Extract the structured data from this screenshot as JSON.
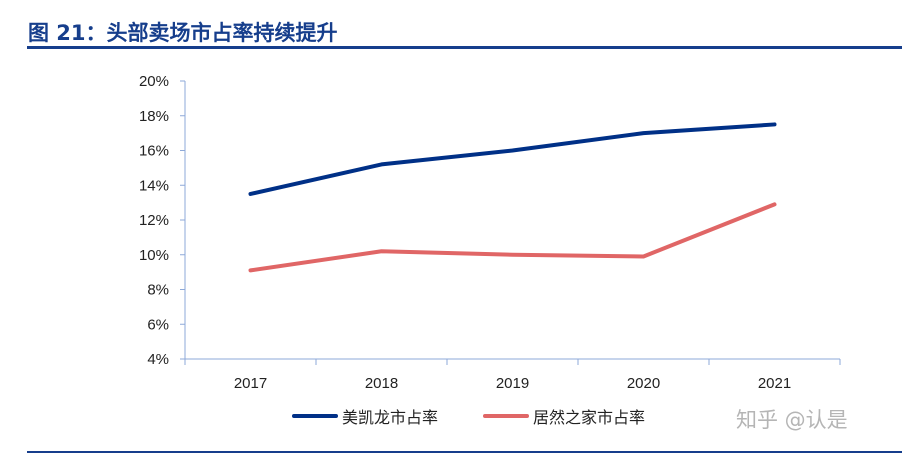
{
  "title": "图 21：头部卖场市占率持续提升",
  "watermark": "知乎 @认是",
  "chart_data": {
    "type": "line",
    "title": "图 21：头部卖场市占率持续提升",
    "categories": [
      "2017",
      "2018",
      "2019",
      "2020",
      "2021"
    ],
    "ylim": [
      4,
      20
    ],
    "yticks": [
      4,
      6,
      8,
      10,
      12,
      14,
      16,
      18,
      20
    ],
    "ytick_labels": [
      "4%",
      "6%",
      "8%",
      "10%",
      "12%",
      "14%",
      "16%",
      "18%",
      "20%"
    ],
    "grid": false,
    "legend_position": "bottom",
    "series": [
      {
        "name": "美凯龙市占率",
        "color": "#003087",
        "values": [
          13.5,
          15.2,
          16.0,
          17.0,
          17.5
        ]
      },
      {
        "name": "居然之家市占率",
        "color": "#e06666",
        "values": [
          9.1,
          10.2,
          10.0,
          9.9,
          12.9
        ]
      }
    ]
  }
}
